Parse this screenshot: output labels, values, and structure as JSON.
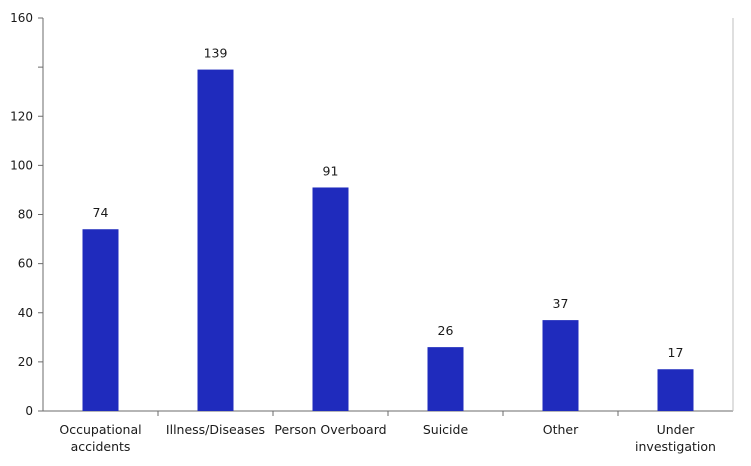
{
  "chart_data": {
    "type": "bar",
    "title": "",
    "xlabel": "",
    "ylabel": "",
    "categories": [
      "Occupational accidents",
      "Illness/Diseases",
      "Person Overboard",
      "Suicide",
      "Other",
      "Under investigation"
    ],
    "category_lines": [
      [
        "Occupational",
        "accidents"
      ],
      [
        "Illness/Diseases"
      ],
      [
        "Person Overboard"
      ],
      [
        "Suicide"
      ],
      [
        "Other"
      ],
      [
        "Under",
        "investigation"
      ]
    ],
    "values": [
      74,
      139,
      91,
      26,
      37,
      17
    ],
    "data_labels": [
      "74",
      "139",
      "91",
      "26",
      "37",
      "17"
    ],
    "ylim": [
      0,
      160
    ],
    "y_ticks": [
      0,
      20,
      40,
      60,
      80,
      100,
      120,
      140,
      160
    ],
    "y_tick_labels": [
      "0",
      "20",
      "40",
      "60",
      "80",
      "100",
      "120",
      "",
      "160"
    ],
    "bar_color": "#1f2bbd",
    "grid": false,
    "legend": "none"
  }
}
